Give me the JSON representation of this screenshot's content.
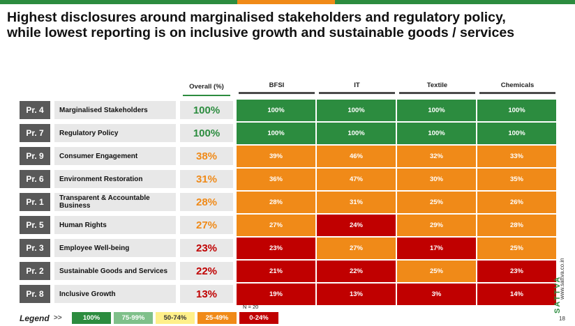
{
  "title": "Highest disclosures around marginalised stakeholders and regulatory policy,\nwhile lowest reporting is on inclusive growth and sustainable goods / services",
  "colors": {
    "100": "#2c8c3f",
    "75-99": "#7fc08a",
    "50-74": "#fff08a",
    "25-49": "#f08a18",
    "0-24": "#c00000",
    "header_line": "#4a4a4a",
    "overall_line": "#2c8c3f"
  },
  "chart_data": {
    "type": "heatmap",
    "overall_header": "Overall (%)",
    "columns": [
      "BFSI",
      "IT",
      "Textile",
      "Chemicals"
    ],
    "rows": [
      {
        "code": "Pr. 4",
        "name": "Marginalised Stakeholders",
        "overall": 100,
        "values": [
          100,
          100,
          100,
          100
        ]
      },
      {
        "code": "Pr. 7",
        "name": "Regulatory Policy",
        "overall": 100,
        "values": [
          100,
          100,
          100,
          100
        ]
      },
      {
        "code": "Pr. 9",
        "name": "Consumer Engagement",
        "overall": 38,
        "values": [
          39,
          46,
          32,
          33
        ]
      },
      {
        "code": "Pr. 6",
        "name": "Environment Restoration",
        "overall": 31,
        "values": [
          36,
          47,
          30,
          35
        ]
      },
      {
        "code": "Pr. 1",
        "name": "Transparent & Accountable Business",
        "overall": 28,
        "values": [
          28,
          31,
          25,
          26
        ]
      },
      {
        "code": "Pr. 5",
        "name": "Human Rights",
        "overall": 27,
        "values": [
          27,
          24,
          29,
          28
        ]
      },
      {
        "code": "Pr. 3",
        "name": "Employee Well-being",
        "overall": 23,
        "values": [
          23,
          27,
          17,
          25
        ]
      },
      {
        "code": "Pr. 2",
        "name": "Sustainable Goods and Services",
        "overall": 22,
        "values": [
          21,
          22,
          25,
          23
        ]
      },
      {
        "code": "Pr. 8",
        "name": "Inclusive Growth",
        "overall": 13,
        "values": [
          19,
          13,
          3,
          14
        ]
      }
    ],
    "legend": {
      "label": "Legend",
      "arrow": ">>",
      "entries": [
        {
          "label": "100%",
          "color": "#2c8c3f",
          "text_color": "#ffffff"
        },
        {
          "label": "75-99%",
          "color": "#7fc08a",
          "text_color": "#ffffff"
        },
        {
          "label": "50-74%",
          "color": "#fff08a",
          "text_color": "#333333"
        },
        {
          "label": "25-49%",
          "color": "#f08a18",
          "text_color": "#ffffff"
        },
        {
          "label": "0-24%",
          "color": "#c00000",
          "text_color": "#ffffff"
        }
      ]
    },
    "note": "N = 20"
  },
  "brand": {
    "name": "SATTVA",
    "url": "www.sattva.co.in"
  },
  "page_number": "18"
}
